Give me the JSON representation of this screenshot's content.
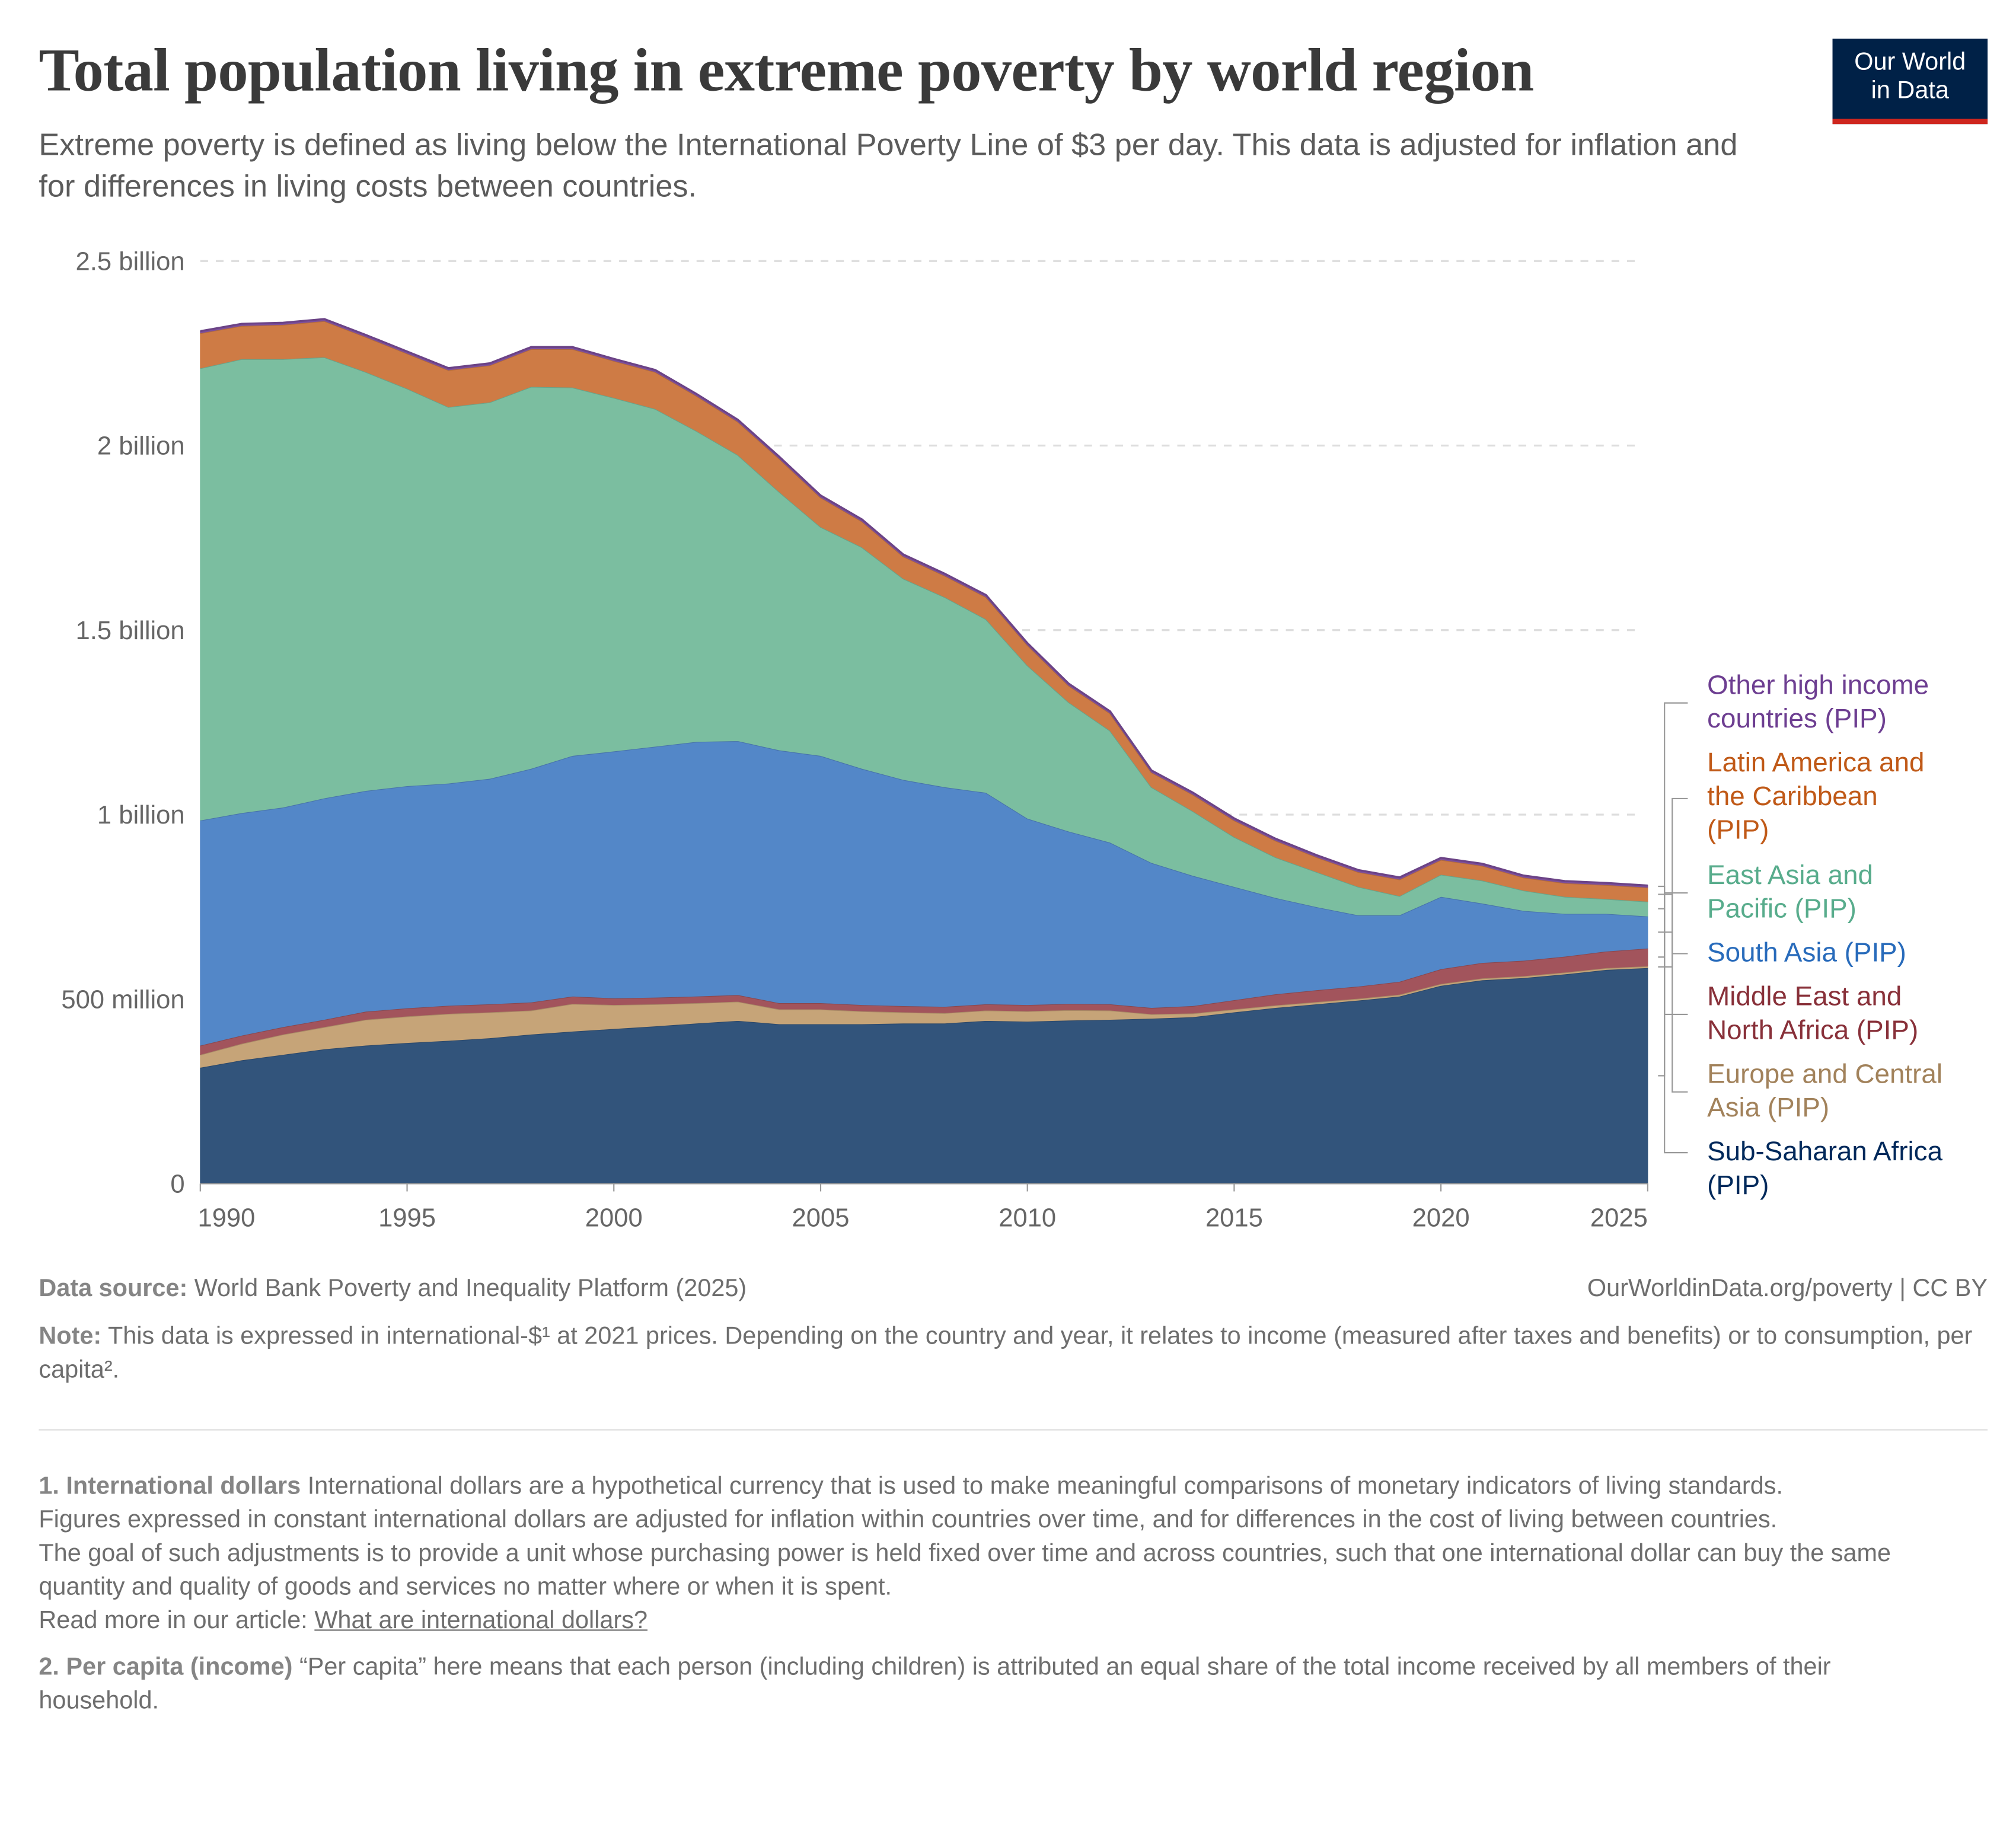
{
  "header": {
    "title": "Total population living in extreme poverty by world region",
    "subtitle": "Extreme poverty is defined as living below the International Poverty Line of $3 per day. This data is adjusted for inflation and for differences in living costs between countries.",
    "logo_line1": "Our World",
    "logo_line2": "in Data"
  },
  "chart_data": {
    "type": "area",
    "stacked": true,
    "title": "Total population living in extreme poverty by world region",
    "xlabel": "",
    "ylabel": "",
    "units": "million people",
    "ylim": [
      0,
      2500
    ],
    "xlim": [
      1990,
      2025
    ],
    "grid": "horizontal dashed",
    "legend_placement": "right",
    "y_ticks": [
      {
        "value": 0,
        "label": "0"
      },
      {
        "value": 500,
        "label": "500 million"
      },
      {
        "value": 1000,
        "label": "1 billion"
      },
      {
        "value": 1500,
        "label": "1.5 billion"
      },
      {
        "value": 2000,
        "label": "2 billion"
      },
      {
        "value": 2500,
        "label": "2.5 billion"
      }
    ],
    "x_ticks": [
      1990,
      1995,
      2000,
      2005,
      2010,
      2015,
      2020,
      2025
    ],
    "x": [
      1990,
      1991,
      1992,
      1993,
      1994,
      1995,
      1996,
      1997,
      1998,
      1999,
      2000,
      2001,
      2002,
      2003,
      2004,
      2005,
      2006,
      2007,
      2008,
      2009,
      2010,
      2011,
      2012,
      2013,
      2014,
      2015,
      2016,
      2017,
      2018,
      2019,
      2020,
      2021,
      2022,
      2023,
      2024,
      2025
    ],
    "series": [
      {
        "name": "Sub-Saharan Africa (PIP)",
        "color": "#32547b",
        "label_color": "#00295b",
        "values": [
          315,
          335,
          350,
          365,
          375,
          382,
          388,
          395,
          405,
          413,
          420,
          427,
          435,
          442,
          433,
          433,
          433,
          435,
          435,
          442,
          440,
          443,
          445,
          448,
          452,
          465,
          477,
          487,
          497,
          508,
          537,
          552,
          558,
          568,
          580,
          585
        ]
      },
      {
        "name": "Europe and Central Asia (PIP)",
        "color": "#c6a478",
        "label_color": "#a2825b",
        "values": [
          35,
          45,
          55,
          60,
          70,
          72,
          73,
          70,
          65,
          75,
          65,
          60,
          55,
          52,
          40,
          40,
          35,
          30,
          28,
          28,
          28,
          28,
          25,
          12,
          10,
          8,
          7,
          6,
          5,
          5,
          5,
          5,
          5,
          5,
          5,
          5
        ]
      },
      {
        "name": "Middle East and North Africa (PIP)",
        "color": "#a2545c",
        "label_color": "#883039",
        "values": [
          25,
          22,
          20,
          20,
          22,
          22,
          22,
          22,
          22,
          20,
          18,
          18,
          18,
          18,
          17,
          17,
          17,
          17,
          17,
          17,
          17,
          17,
          17,
          17,
          20,
          25,
          30,
          32,
          33,
          35,
          40,
          42,
          42,
          43,
          45,
          48
        ]
      },
      {
        "name": "South Asia (PIP)",
        "color": "#5387c8",
        "label_color": "#286bbb",
        "values": [
          610,
          603,
          595,
          600,
          598,
          602,
          602,
          611,
          633,
          652,
          669,
          680,
          690,
          688,
          685,
          670,
          640,
          613,
          595,
          573,
          505,
          467,
          438,
          393,
          353,
          307,
          261,
          225,
          193,
          180,
          196,
          161,
          135,
          116,
          102,
          87
        ]
      },
      {
        "name": "East Asia and Pacific (PIP)",
        "color": "#7bbea0",
        "label_color": "#58ac8c",
        "values": [
          1225,
          1230,
          1215,
          1195,
          1135,
          1077,
          1020,
          1020,
          1035,
          998,
          958,
          915,
          842,
          775,
          700,
          620,
          600,
          545,
          515,
          470,
          415,
          350,
          303,
          205,
          175,
          135,
          110,
          95,
          77,
          52,
          60,
          62,
          55,
          46,
          40,
          40
        ]
      },
      {
        "name": "Latin America and the Caribbean (PIP)",
        "color": "#ce7b45",
        "label_color": "#c05917",
        "values": [
          95,
          90,
          93,
          98,
          95,
          95,
          100,
          100,
          102,
          104,
          100,
          100,
          95,
          90,
          90,
          80,
          70,
          60,
          58,
          60,
          55,
          45,
          47,
          40,
          45,
          45,
          45,
          40,
          40,
          45,
          40,
          40,
          35,
          37,
          38,
          38
        ]
      },
      {
        "name": "Other high income countries (PIP)",
        "color": "#7e4f9e",
        "label_color": "#6d3e91",
        "values": [
          5,
          5,
          5,
          5,
          5,
          5,
          5,
          5,
          5,
          5,
          5,
          5,
          5,
          5,
          5,
          5,
          5,
          5,
          5,
          5,
          5,
          5,
          5,
          5,
          5,
          5,
          5,
          5,
          5,
          5,
          5,
          5,
          5,
          5,
          5,
          5
        ]
      }
    ]
  },
  "legend": {
    "other": [
      "Other high income",
      "countries (PIP)"
    ],
    "lac": [
      "Latin America and",
      "the Caribbean",
      "(PIP)"
    ],
    "eap": [
      "East Asia and",
      "Pacific (PIP)"
    ],
    "sa": [
      "South Asia (PIP)"
    ],
    "mena": [
      "Middle East and",
      "North Africa (PIP)"
    ],
    "eca": [
      "Europe and Central",
      "Asia (PIP)"
    ],
    "ssa": [
      "Sub-Saharan Africa",
      "(PIP)"
    ]
  },
  "footer": {
    "source_label": "Data source:",
    "source_text": "World Bank Poverty and Inequality Platform (2025)",
    "url_text": "OurWorldinData.org/poverty | CC BY",
    "note_label": "Note:",
    "note_text": "This data is expressed in international-$¹ at 2021 prices. Depending on the country and year, it relates to income (measured after taxes and benefits) or to consumption, per capita².",
    "fn1_label": "1. International dollars",
    "fn1_p1": "International dollars are a hypothetical currency that is used to make meaningful comparisons of monetary indicators of living standards.",
    "fn1_p2": "Figures expressed in constant international dollars are adjusted for inflation within countries over time, and for differences in the cost of living between countries.",
    "fn1_p3": "The goal of such adjustments is to provide a unit whose purchasing power is held fixed over time and across countries, such that one international dollar can buy the same quantity and quality of goods and services no matter where or when it is spent.",
    "fn1_read_more": "Read more in our article:",
    "fn1_link": "What are international dollars?",
    "fn2_label": "2. Per capita (income)",
    "fn2_text": "“Per capita” here means that each person (including children) is attributed an equal share of the total income received by all members of their household."
  }
}
